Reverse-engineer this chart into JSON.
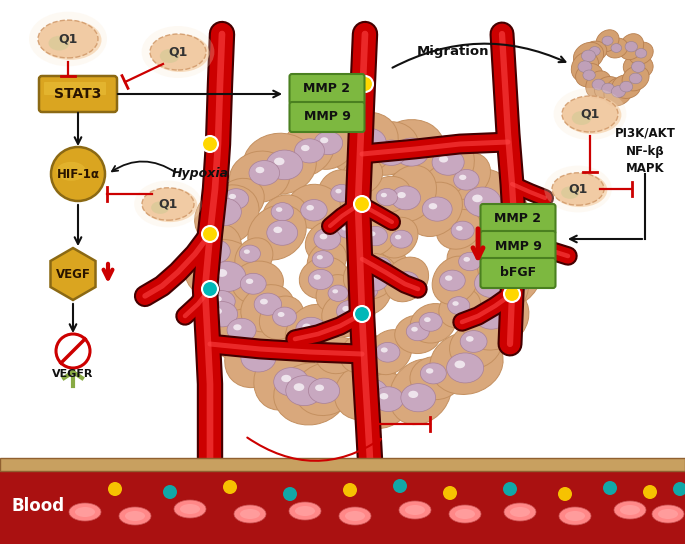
{
  "bg_color": "#ffffff",
  "tumor_cell_color": "#D9A87C",
  "tumor_cell_edge": "#C49060",
  "nucleus_color": "#C8A8C0",
  "nucleus_edge": "#A88098",
  "vessel_color": "#CC0000",
  "vessel_edge": "#440000",
  "vessel_highlight": "#FF4444",
  "blood_bg": "#AA1111",
  "blood_border": "#CC8844",
  "rbc_color": "#FF7777",
  "q1_fill": "#F0C8A0",
  "q1_edge": "#D09868",
  "gold_fill": "#DAA520",
  "gold_edge": "#8B6914",
  "gold_highlight": "#F0C840",
  "green_fill": "#7DB840",
  "green_edge": "#4A8020",
  "inhibit_color": "#CC0000",
  "arrow_color": "#111111",
  "red_arrow": "#CC0000",
  "node_yellow": "#FFD700",
  "node_teal": "#00B8B8",
  "pi3k_text": "PI3K/AKT\nNF-kβ\nMAPK",
  "migration_text": "Migration",
  "hypoxia_text": "Hypoxia",
  "blood_text": "Blood"
}
